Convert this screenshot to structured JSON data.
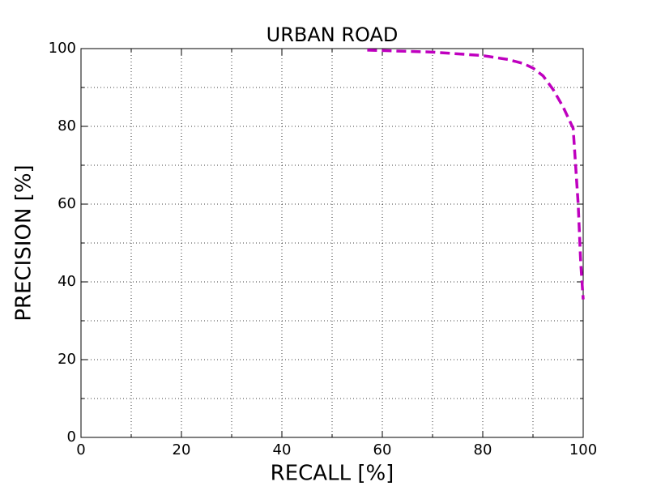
{
  "chart_data": {
    "type": "line",
    "title": "URBAN ROAD",
    "x_label": "RECALL [%]",
    "y_label": "PRECISION [%]",
    "x": [
      57,
      60,
      70,
      80,
      85,
      88,
      90,
      92,
      94,
      96,
      98,
      99,
      99.5,
      100
    ],
    "series": [
      {
        "name": "URBAN ROAD",
        "color": "#bf00bf",
        "dashed": true,
        "values": [
          99.6,
          99.5,
          99.1,
          98.2,
          97.2,
          96.2,
          95,
          93,
          89.5,
          85,
          79.5,
          60,
          45,
          35.5
        ]
      }
    ],
    "xlim": [
      0,
      100
    ],
    "ylim": [
      0,
      100
    ],
    "xticks": [
      0,
      20,
      40,
      60,
      80,
      100
    ],
    "yticks": [
      0,
      20,
      40,
      60,
      80,
      100
    ],
    "xminor_ticks": [
      10,
      30,
      50,
      70,
      90
    ],
    "yminor_ticks": [
      10,
      30,
      50,
      70,
      90
    ],
    "grid": true
  }
}
